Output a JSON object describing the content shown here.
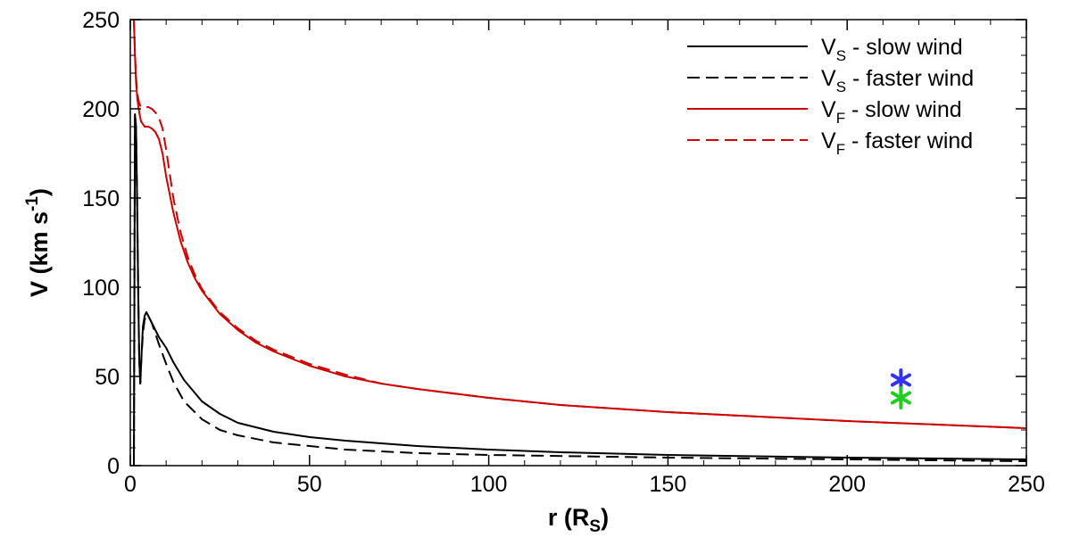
{
  "chart_data": {
    "type": "line",
    "title": "",
    "xlabel": {
      "main": "r (R",
      "sub": "S",
      "close": ")"
    },
    "ylabel": {
      "main": "V (km s",
      "sup": "-1",
      "close": ")"
    },
    "xlim": [
      0,
      250
    ],
    "ylim": [
      0,
      250
    ],
    "xticks": [
      0,
      50,
      100,
      150,
      200,
      250
    ],
    "yticks": [
      0,
      50,
      100,
      150,
      200,
      250
    ],
    "grid": false,
    "legend_position": "top-right",
    "series": [
      {
        "key": "vs_slow",
        "label": {
          "main": "V",
          "sub": "S",
          "rest": " - slow wind"
        },
        "color": "#000000",
        "dash": "solid",
        "x": [
          1,
          1.3,
          1.6,
          1.9,
          2.2,
          2.5,
          2.8,
          3.1,
          3.5,
          4,
          4.5,
          5,
          6,
          7,
          8,
          10,
          12,
          15,
          20,
          25,
          30,
          40,
          50,
          60,
          80,
          100,
          120,
          150,
          200,
          250
        ],
        "y": [
          0,
          197,
          190,
          150,
          100,
          60,
          46,
          60,
          78,
          84,
          86,
          84,
          80,
          76,
          72,
          66,
          58,
          48,
          36,
          29,
          24,
          19,
          16,
          14,
          11,
          9,
          7.5,
          6,
          4.5,
          3.5
        ]
      },
      {
        "key": "vs_fast",
        "label": {
          "main": "V",
          "sub": "S",
          "rest": " - faster wind"
        },
        "color": "#000000",
        "dash": "dashed",
        "x": [
          1,
          1.3,
          1.6,
          1.9,
          2.2,
          2.5,
          2.8,
          3.1,
          3.5,
          4,
          5,
          6,
          7,
          8,
          10,
          12,
          15,
          20,
          25,
          30,
          40,
          50,
          60,
          80,
          100,
          150,
          200,
          250
        ],
        "y": [
          0,
          197,
          190,
          150,
          100,
          60,
          46,
          60,
          74,
          82,
          84,
          80,
          74,
          68,
          57,
          47,
          36,
          26,
          20,
          17,
          13,
          11,
          9,
          7,
          6,
          4.5,
          3.5,
          2.5
        ]
      },
      {
        "key": "vf_slow",
        "label": {
          "main": "V",
          "sub": "F",
          "rest": " - slow wind"
        },
        "color": "#cc0000",
        "dash": "solid",
        "x": [
          1,
          1.3,
          1.6,
          2,
          2.5,
          3,
          4,
          5,
          6,
          7,
          8,
          9,
          10,
          12,
          14,
          16,
          18,
          20,
          25,
          30,
          35,
          40,
          50,
          60,
          70,
          80,
          100,
          120,
          150,
          200,
          250
        ],
        "y": [
          250,
          230,
          215,
          205,
          198,
          193,
          190,
          190,
          189,
          187,
          183,
          175,
          162,
          142,
          126,
          114,
          105,
          98,
          85,
          76,
          69,
          64,
          56,
          50,
          46,
          43,
          38,
          34,
          30,
          25,
          21
        ]
      },
      {
        "key": "vf_fast",
        "label": {
          "main": "V",
          "sub": "F",
          "rest": " - faster wind"
        },
        "color": "#cc0000",
        "dash": "dashed",
        "x": [
          1,
          1.3,
          1.6,
          2,
          2.5,
          3,
          4,
          5,
          6,
          7,
          8,
          9,
          10,
          12,
          14,
          16,
          18,
          20,
          25,
          30,
          35,
          40,
          50,
          60,
          70,
          80,
          100,
          120,
          150,
          200,
          250
        ],
        "y": [
          250,
          232,
          218,
          208,
          203,
          201,
          201,
          201,
          200,
          198,
          195,
          189,
          177,
          150,
          131,
          117,
          107,
          99,
          86,
          77,
          70,
          65,
          57,
          51,
          46,
          43,
          38,
          34,
          30,
          25,
          21
        ]
      }
    ],
    "markers": [
      {
        "key": "star_blue",
        "x": 215,
        "y": 48,
        "color": "#3333ee",
        "symbol": "asterisk"
      },
      {
        "key": "star_green",
        "x": 215,
        "y": 38,
        "color": "#22cc22",
        "symbol": "asterisk"
      }
    ]
  }
}
